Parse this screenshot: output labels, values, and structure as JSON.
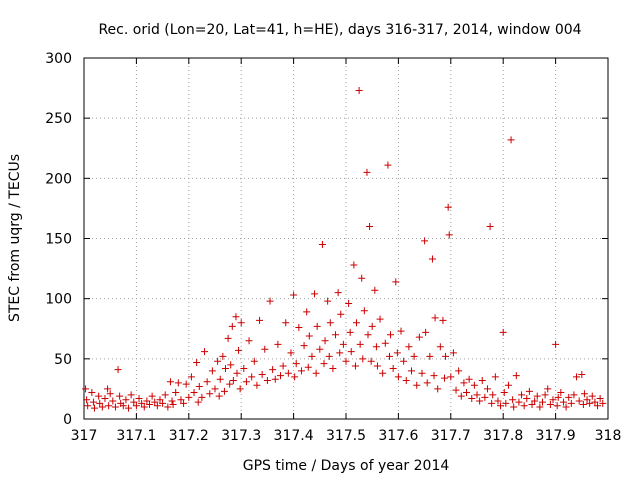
{
  "chart_data": {
    "type": "scatter",
    "title": "Rec. orid (Lon=20, Lat=41, h=HE), days 316-317, 2014, window 004",
    "xlabel": "GPS time / Days of year 2014",
    "ylabel": "STEC from uqrg / TECUs",
    "xlim": [
      317,
      318
    ],
    "ylim": [
      0,
      300
    ],
    "xticks": [
      317,
      317.1,
      317.2,
      317.3,
      317.4,
      317.5,
      317.6,
      317.7,
      317.8,
      317.9,
      318
    ],
    "xtick_labels": [
      "317",
      "317.1",
      "317.2",
      "317.3",
      "317.4",
      "317.5",
      "317.6",
      "317.7",
      "317.8",
      "317.9",
      "318"
    ],
    "yticks": [
      0,
      50,
      100,
      150,
      200,
      250,
      300
    ],
    "ytick_labels": [
      "0",
      "50",
      "100",
      "150",
      "200",
      "250",
      "300"
    ],
    "grid": true,
    "marker": "+",
    "color": "#cc0000",
    "series": [
      {
        "name": "STEC",
        "points": [
          [
            317.003,
            25
          ],
          [
            317.005,
            16
          ],
          [
            317.007,
            11
          ],
          [
            317.015,
            22
          ],
          [
            317.018,
            14
          ],
          [
            317.02,
            9
          ],
          [
            317.028,
            19
          ],
          [
            317.03,
            13
          ],
          [
            317.035,
            10
          ],
          [
            317.04,
            17
          ],
          [
            317.045,
            25
          ],
          [
            317.047,
            11
          ],
          [
            317.05,
            21
          ],
          [
            317.055,
            15
          ],
          [
            317.06,
            10
          ],
          [
            317.065,
            41
          ],
          [
            317.068,
            19
          ],
          [
            317.07,
            13
          ],
          [
            317.075,
            11
          ],
          [
            317.08,
            16
          ],
          [
            317.085,
            9
          ],
          [
            317.09,
            20
          ],
          [
            317.095,
            14
          ],
          [
            317.1,
            11
          ],
          [
            317.105,
            17
          ],
          [
            317.11,
            13
          ],
          [
            317.115,
            10
          ],
          [
            317.12,
            15
          ],
          [
            317.125,
            12
          ],
          [
            317.13,
            19
          ],
          [
            317.135,
            14
          ],
          [
            317.14,
            11
          ],
          [
            317.145,
            16
          ],
          [
            317.15,
            13
          ],
          [
            317.155,
            20
          ],
          [
            317.16,
            10
          ],
          [
            317.165,
            31
          ],
          [
            317.168,
            15
          ],
          [
            317.17,
            12
          ],
          [
            317.175,
            22
          ],
          [
            317.18,
            30
          ],
          [
            317.185,
            16
          ],
          [
            317.19,
            13
          ],
          [
            317.195,
            29
          ],
          [
            317.2,
            18
          ],
          [
            317.205,
            35
          ],
          [
            317.21,
            22
          ],
          [
            317.215,
            47
          ],
          [
            317.218,
            14
          ],
          [
            317.22,
            27
          ],
          [
            317.225,
            18
          ],
          [
            317.23,
            56
          ],
          [
            317.235,
            31
          ],
          [
            317.24,
            21
          ],
          [
            317.245,
            40
          ],
          [
            317.25,
            25
          ],
          [
            317.255,
            48
          ],
          [
            317.258,
            19
          ],
          [
            317.26,
            33
          ],
          [
            317.265,
            52
          ],
          [
            317.268,
            23
          ],
          [
            317.27,
            42
          ],
          [
            317.275,
            67
          ],
          [
            317.278,
            29
          ],
          [
            317.28,
            45
          ],
          [
            317.283,
            77
          ],
          [
            317.285,
            32
          ],
          [
            317.29,
            85
          ],
          [
            317.292,
            38
          ],
          [
            317.295,
            57
          ],
          [
            317.298,
            25
          ],
          [
            317.3,
            80
          ],
          [
            317.305,
            42
          ],
          [
            317.31,
            31
          ],
          [
            317.315,
            65
          ],
          [
            317.32,
            35
          ],
          [
            317.325,
            48
          ],
          [
            317.33,
            28
          ],
          [
            317.335,
            82
          ],
          [
            317.34,
            37
          ],
          [
            317.345,
            58
          ],
          [
            317.35,
            32
          ],
          [
            317.355,
            98
          ],
          [
            317.36,
            41
          ],
          [
            317.365,
            33
          ],
          [
            317.37,
            62
          ],
          [
            317.375,
            36
          ],
          [
            317.38,
            44
          ],
          [
            317.385,
            80
          ],
          [
            317.39,
            38
          ],
          [
            317.395,
            55
          ],
          [
            317.4,
            103
          ],
          [
            317.402,
            35
          ],
          [
            317.405,
            46
          ],
          [
            317.41,
            76
          ],
          [
            317.415,
            40
          ],
          [
            317.42,
            61
          ],
          [
            317.425,
            89
          ],
          [
            317.428,
            43
          ],
          [
            317.43,
            69
          ],
          [
            317.435,
            52
          ],
          [
            317.44,
            104
          ],
          [
            317.443,
            38
          ],
          [
            317.445,
            77
          ],
          [
            317.45,
            58
          ],
          [
            317.455,
            145
          ],
          [
            317.458,
            46
          ],
          [
            317.46,
            65
          ],
          [
            317.465,
            98
          ],
          [
            317.468,
            52
          ],
          [
            317.47,
            80
          ],
          [
            317.475,
            42
          ],
          [
            317.48,
            70
          ],
          [
            317.485,
            105
          ],
          [
            317.488,
            55
          ],
          [
            317.49,
            87
          ],
          [
            317.495,
            62
          ],
          [
            317.5,
            48
          ],
          [
            317.505,
            96
          ],
          [
            317.508,
            72
          ],
          [
            317.51,
            56
          ],
          [
            317.515,
            128
          ],
          [
            317.518,
            44
          ],
          [
            317.52,
            80
          ],
          [
            317.525,
            273
          ],
          [
            317.527,
            62
          ],
          [
            317.53,
            117
          ],
          [
            317.532,
            50
          ],
          [
            317.535,
            90
          ],
          [
            317.54,
            205
          ],
          [
            317.542,
            70
          ],
          [
            317.545,
            160
          ],
          [
            317.548,
            48
          ],
          [
            317.55,
            77
          ],
          [
            317.555,
            107
          ],
          [
            317.558,
            60
          ],
          [
            317.56,
            44
          ],
          [
            317.565,
            83
          ],
          [
            317.57,
            38
          ],
          [
            317.575,
            63
          ],
          [
            317.58,
            211
          ],
          [
            317.583,
            52
          ],
          [
            317.585,
            70
          ],
          [
            317.59,
            42
          ],
          [
            317.595,
            114
          ],
          [
            317.598,
            55
          ],
          [
            317.6,
            35
          ],
          [
            317.605,
            73
          ],
          [
            317.61,
            48
          ],
          [
            317.615,
            32
          ],
          [
            317.62,
            60
          ],
          [
            317.625,
            40
          ],
          [
            317.63,
            52
          ],
          [
            317.635,
            28
          ],
          [
            317.64,
            68
          ],
          [
            317.645,
            38
          ],
          [
            317.65,
            148
          ],
          [
            317.652,
            72
          ],
          [
            317.655,
            30
          ],
          [
            317.66,
            52
          ],
          [
            317.665,
            133
          ],
          [
            317.668,
            36
          ],
          [
            317.67,
            84
          ],
          [
            317.675,
            25
          ],
          [
            317.68,
            60
          ],
          [
            317.685,
            82
          ],
          [
            317.688,
            34
          ],
          [
            317.69,
            52
          ],
          [
            317.695,
            176
          ],
          [
            317.697,
            153
          ],
          [
            317.7,
            35
          ],
          [
            317.705,
            55
          ],
          [
            317.71,
            24
          ],
          [
            317.715,
            40
          ],
          [
            317.72,
            19
          ],
          [
            317.725,
            30
          ],
          [
            317.73,
            22
          ],
          [
            317.735,
            33
          ],
          [
            317.74,
            17
          ],
          [
            317.745,
            28
          ],
          [
            317.75,
            20
          ],
          [
            317.755,
            15
          ],
          [
            317.76,
            32
          ],
          [
            317.765,
            18
          ],
          [
            317.77,
            25
          ],
          [
            317.775,
            160
          ],
          [
            317.778,
            13
          ],
          [
            317.78,
            20
          ],
          [
            317.785,
            35
          ],
          [
            317.79,
            15
          ],
          [
            317.795,
            11
          ],
          [
            317.8,
            72
          ],
          [
            317.802,
            22
          ],
          [
            317.805,
            13
          ],
          [
            317.81,
            28
          ],
          [
            317.815,
            232
          ],
          [
            317.818,
            16
          ],
          [
            317.82,
            10
          ],
          [
            317.825,
            36
          ],
          [
            317.83,
            14
          ],
          [
            317.835,
            20
          ],
          [
            317.84,
            11
          ],
          [
            317.845,
            17
          ],
          [
            317.85,
            23
          ],
          [
            317.855,
            12
          ],
          [
            317.86,
            15
          ],
          [
            317.865,
            19
          ],
          [
            317.87,
            10
          ],
          [
            317.875,
            14
          ],
          [
            317.88,
            20
          ],
          [
            317.885,
            25
          ],
          [
            317.89,
            12
          ],
          [
            317.895,
            16
          ],
          [
            317.9,
            62
          ],
          [
            317.903,
            11
          ],
          [
            317.905,
            18
          ],
          [
            317.91,
            22
          ],
          [
            317.915,
            14
          ],
          [
            317.92,
            10
          ],
          [
            317.925,
            18
          ],
          [
            317.93,
            13
          ],
          [
            317.935,
            20
          ],
          [
            317.94,
            35
          ],
          [
            317.945,
            15
          ],
          [
            317.95,
            37
          ],
          [
            317.953,
            12
          ],
          [
            317.955,
            21
          ],
          [
            317.96,
            16
          ],
          [
            317.965,
            13
          ],
          [
            317.97,
            19
          ],
          [
            317.975,
            14
          ],
          [
            317.98,
            11
          ],
          [
            317.985,
            17
          ],
          [
            317.99,
            13
          ]
        ]
      }
    ]
  }
}
